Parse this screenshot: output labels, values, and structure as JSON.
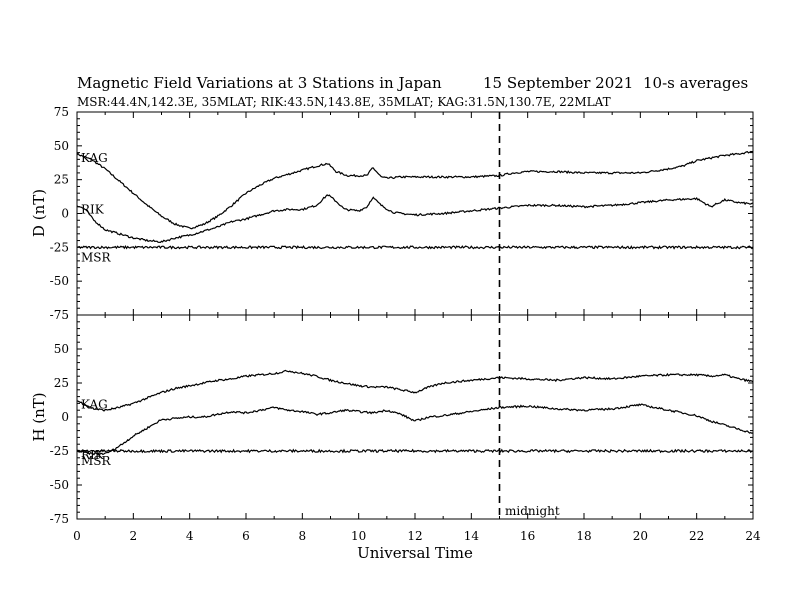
{
  "header": {
    "title": "Magnetic Field Variations at 3 Stations in Japan",
    "date": "15 September 2021",
    "averaging": "10-s averages",
    "stations_line": "MSR:44.4N,142.3E, 35MLAT;  RIK:43.5N,143.8E, 35MLAT;  KAG:31.5N,130.7E, 22MLAT"
  },
  "chart_data": {
    "type": "line",
    "xlabel": "Universal Time",
    "xlim": [
      0,
      24
    ],
    "x_ticks": [
      "0",
      "2",
      "4",
      "6",
      "8",
      "10",
      "12",
      "14",
      "16",
      "18",
      "20",
      "22",
      "24"
    ],
    "marker": {
      "x": 15,
      "label": "midnight"
    },
    "panels": [
      {
        "ylabel": "D (nT)",
        "ylim": [
          -75,
          75
        ],
        "y_ticks": [
          "75",
          "50",
          "25",
          "0",
          "-25",
          "-50",
          "-75"
        ],
        "series": [
          {
            "name": "KAG",
            "x": [
              0,
              0.5,
              1,
              1.5,
              2,
              2.5,
              3,
              3.5,
              4,
              4.5,
              5,
              5.5,
              6,
              6.5,
              7,
              7.5,
              8,
              8.5,
              8.9,
              9.2,
              9.6,
              10,
              10.3,
              10.5,
              10.8,
              11,
              11.5,
              12,
              13,
              14,
              15,
              15.5,
              16,
              17,
              18,
              19,
              20,
              21,
              21.5,
              22,
              22.5,
              23,
              23.5,
              24
            ],
            "y": [
              44,
              40,
              33,
              24,
              15,
              6,
              -2,
              -8,
              -11,
              -8,
              -2,
              6,
              15,
              21,
              26,
              29,
              32,
              35,
              37,
              31,
              28,
              28,
              28,
              34,
              27,
              26,
              27,
              27,
              27,
              27,
              28,
              30,
              31,
              31,
              30,
              30,
              30,
              33,
              35,
              39,
              41,
              43,
              44,
              46
            ]
          },
          {
            "name": "RIK",
            "x": [
              0,
              0.3,
              0.6,
              1,
              1.5,
              2,
              2.5,
              3,
              3.5,
              4,
              4.5,
              5,
              5.5,
              6,
              6.5,
              7,
              7.5,
              8,
              8.5,
              8.9,
              9.2,
              9.5,
              10,
              10.3,
              10.5,
              10.8,
              11.2,
              11.5,
              12,
              13,
              14,
              15,
              16,
              17,
              18,
              19,
              20,
              21,
              22,
              22.5,
              23,
              23.5,
              24
            ],
            "y": [
              6,
              3,
              -5,
              -12,
              -15,
              -18,
              -20,
              -21,
              -18,
              -16,
              -13,
              -10,
              -6,
              -4,
              -1,
              2,
              3,
              3,
              6,
              14,
              9,
              3,
              2,
              5,
              12,
              6,
              1,
              0,
              -1,
              0,
              2,
              4,
              6,
              6,
              5,
              6,
              8,
              10,
              11,
              5,
              10,
              8,
              7
            ]
          },
          {
            "name": "MSR",
            "x": [
              0,
              2,
              4,
              6,
              8,
              10,
              12,
              14,
              15,
              16,
              18,
              20,
              22,
              24
            ],
            "y": [
              -25,
              -25,
              -25,
              -25,
              -25,
              -25,
              -25,
              -25,
              -25,
              -25,
              -25,
              -25,
              -25,
              -25
            ]
          }
        ]
      },
      {
        "ylabel": "H (nT)",
        "ylim": [
          -75,
          75
        ],
        "y_ticks": [
          "75",
          "50",
          "25",
          "0",
          "-25",
          "-50",
          "-75"
        ],
        "series": [
          {
            "name": "KAG",
            "x": [
              0,
              0.3,
              0.6,
              1,
              1.5,
              2,
              2.5,
              3,
              3.5,
              4,
              4.5,
              5,
              5.5,
              6,
              6.5,
              7,
              7.5,
              8,
              8.5,
              9,
              9.5,
              10,
              10.5,
              11,
              11.5,
              12,
              12.5,
              13,
              14,
              15,
              16,
              17,
              18,
              19,
              20,
              21,
              22,
              22.5,
              23,
              23.5,
              24
            ],
            "y": [
              12,
              9,
              6,
              5,
              7,
              10,
              14,
              18,
              21,
              23,
              25,
              27,
              28,
              30,
              31,
              32,
              34,
              32,
              30,
              27,
              25,
              23,
              22,
              22,
              20,
              18,
              22,
              25,
              27,
              29,
              28,
              27,
              29,
              28,
              30,
              31,
              31,
              30,
              31,
              28,
              26
            ]
          },
          {
            "name": "RIK",
            "x": [
              0,
              0.5,
              1,
              1.3,
              1.6,
              2,
              2.5,
              3,
              3.5,
              4,
              4.5,
              5,
              5.5,
              6,
              6.5,
              7,
              7.5,
              8,
              8.5,
              9,
              9.5,
              10,
              10.5,
              11,
              11.5,
              12,
              12.5,
              13,
              14,
              15,
              16,
              17,
              18,
              19,
              20,
              21,
              22,
              22.5,
              23,
              23.5,
              24
            ],
            "y": [
              -25,
              -27,
              -27,
              -24,
              -20,
              -14,
              -8,
              -2,
              -1,
              0,
              0,
              2,
              4,
              3,
              5,
              7,
              5,
              4,
              2,
              3,
              5,
              4,
              3,
              5,
              2,
              -3,
              0,
              1,
              4,
              7,
              8,
              6,
              5,
              6,
              9,
              5,
              1,
              -3,
              -6,
              -9,
              -12
            ]
          },
          {
            "name": "MSR",
            "x": [
              0,
              2,
              4,
              6,
              8,
              10,
              12,
              14,
              15,
              16,
              18,
              20,
              22,
              24
            ],
            "y": [
              -25,
              -25,
              -25,
              -25,
              -25,
              -25,
              -25,
              -25,
              -25,
              -25,
              -25,
              -25,
              -25,
              -25
            ]
          }
        ]
      }
    ]
  }
}
